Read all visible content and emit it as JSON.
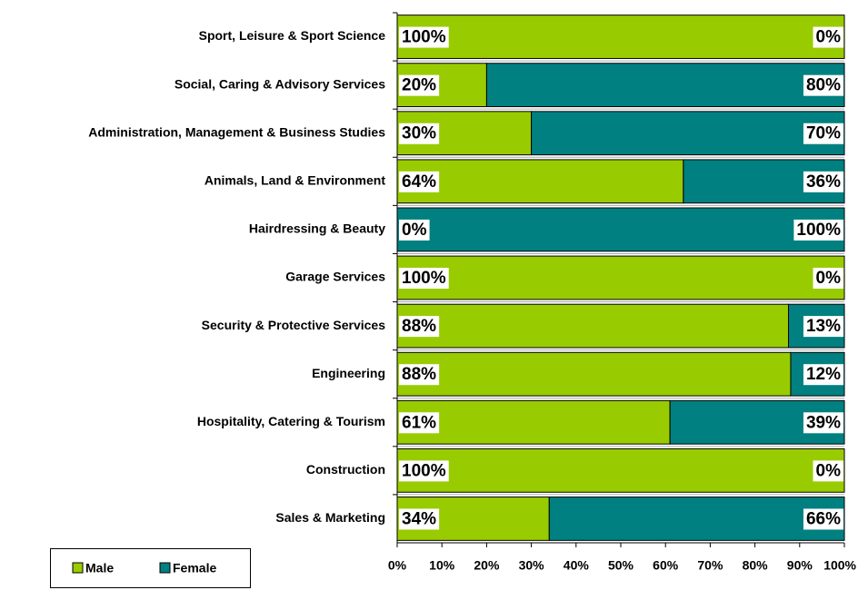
{
  "chart_data": {
    "type": "stacked-bar-horizontal",
    "categories": [
      "Sport, Leisure & Sport Science",
      "Social, Caring & Advisory Services",
      "Administration, Management  & Business Studies",
      "Animals, Land & Environment",
      "Hairdressing & Beauty",
      "Garage Services",
      "Security & Protective Services",
      "Engineering",
      "Hospitality, Catering & Tourism",
      "Construction",
      "Sales & Marketing"
    ],
    "series": [
      {
        "name": "Male",
        "color": "#99cc00",
        "values": [
          100,
          20,
          30,
          64,
          0,
          100,
          87.5,
          88,
          61,
          100,
          34
        ],
        "value_labels": [
          "100%",
          "20%",
          "30%",
          "64%",
          "0%",
          "100%",
          "88%",
          "88%",
          "61%",
          "100%",
          "34%"
        ]
      },
      {
        "name": "Female",
        "color": "#008080",
        "values": [
          0,
          80,
          70,
          36,
          100,
          0,
          12.5,
          12,
          39,
          0,
          66
        ],
        "value_labels": [
          "0%",
          "80%",
          "70%",
          "36%",
          "100%",
          "0%",
          "13%",
          "12%",
          "39%",
          "0%",
          "66%"
        ]
      }
    ],
    "xlim": [
      0,
      100
    ],
    "xticks": [
      {
        "value": 0,
        "label": "0%"
      },
      {
        "value": 10,
        "label": "10%"
      },
      {
        "value": 20,
        "label": "20%"
      },
      {
        "value": 30,
        "label": "30%"
      },
      {
        "value": 40,
        "label": "40%"
      },
      {
        "value": 50,
        "label": "50%"
      },
      {
        "value": 60,
        "label": "60%"
      },
      {
        "value": 70,
        "label": "70%"
      },
      {
        "value": 80,
        "label": "80%"
      },
      {
        "value": 90,
        "label": "90%"
      },
      {
        "value": 100,
        "label": "100%"
      }
    ],
    "legend": "bottom-left"
  }
}
